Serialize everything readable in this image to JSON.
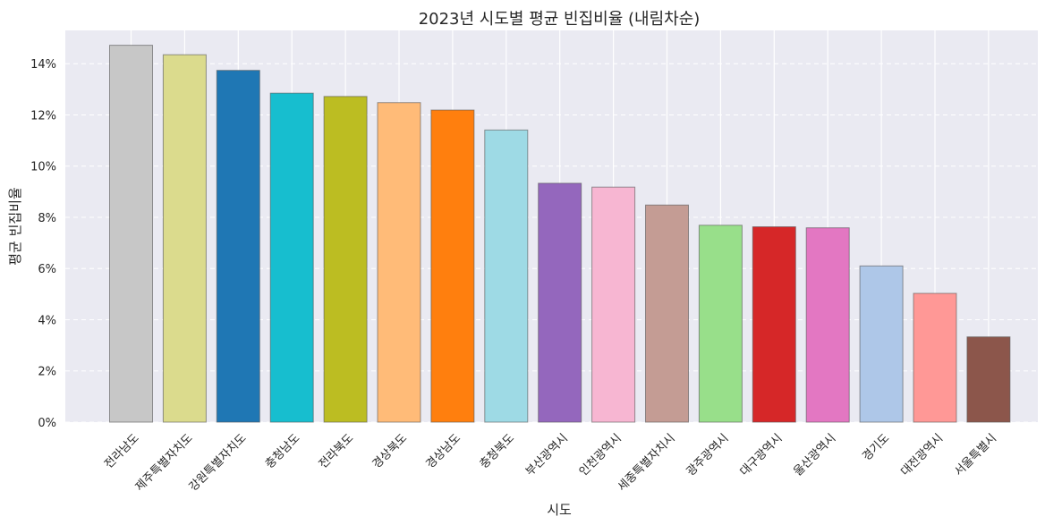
{
  "chart_data": {
    "type": "bar",
    "title": "2023년 시도별 평균 빈집비율 (내림차순)",
    "xlabel": "시도",
    "ylabel": "평균 빈집비율",
    "ylim": [
      0,
      15.3
    ],
    "yticks": [
      0,
      2,
      4,
      6,
      8,
      10,
      12,
      14
    ],
    "ytick_suffix": "%",
    "grid": true,
    "categories": [
      "전라남도",
      "제주특별자치도",
      "강원특별자치도",
      "충청남도",
      "전라북도",
      "경상북도",
      "경상남도",
      "충청북도",
      "부산광역시",
      "인천광역시",
      "세종특별자치시",
      "광주광역시",
      "대구광역시",
      "울산광역시",
      "경기도",
      "대전광역시",
      "서울특별시"
    ],
    "values": [
      14.72,
      14.35,
      13.74,
      12.85,
      12.72,
      12.48,
      12.19,
      11.41,
      9.33,
      9.18,
      8.48,
      7.69,
      7.63,
      7.59,
      6.1,
      5.03,
      3.33
    ],
    "colors": [
      "#c7c7c7",
      "#dbdb8d",
      "#1f77b4",
      "#17becf",
      "#bcbd22",
      "#ffbb78",
      "#ff7f0e",
      "#9edae5",
      "#9467bd",
      "#f7b6d2",
      "#c49c94",
      "#98df8a",
      "#d62728",
      "#e377c2",
      "#aec7e8",
      "#ff9896",
      "#8c564b"
    ],
    "background": "#eaeaf2"
  }
}
